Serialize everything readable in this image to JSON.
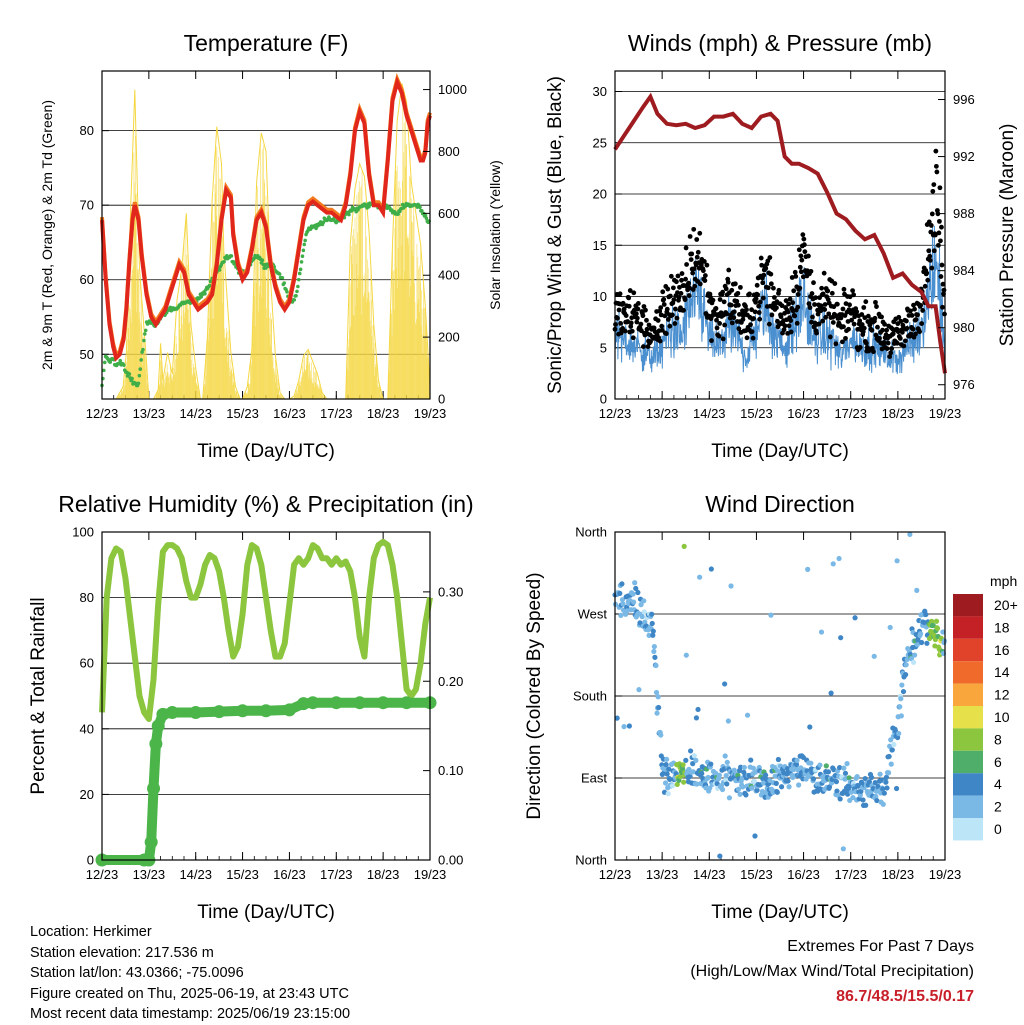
{
  "colors": {
    "t2m": "#e1261c",
    "t9m": "#f47a1f",
    "td": "#3fae49",
    "solar": "#f5d742",
    "wind": "#4a8fcf",
    "gust": "#000000",
    "pressure": "#9e1b20",
    "rh": "#8cc63f",
    "rain": "#4cb54a",
    "extremes": "#c8202a"
  },
  "chart_data": [
    {
      "type": "line",
      "title": "Temperature (F)",
      "xlabel": "Time (Day/UTC)",
      "ylabel": "2m & 9m T (Red, Orange) & 2m Td (Green)",
      "y2label": "Solar Insolation (Yellow)",
      "x_ticks": [
        "12/23",
        "13/23",
        "14/23",
        "15/23",
        "16/23",
        "17/23",
        "18/23",
        "19/23"
      ],
      "xlim": [
        0,
        7
      ],
      "ylim": [
        44,
        88
      ],
      "y_ticks": [
        50,
        60,
        70,
        80
      ],
      "y2lim": [
        0,
        1060
      ],
      "y2_ticks": [
        0,
        200,
        400,
        600,
        800,
        1000
      ],
      "grid": true,
      "series": [
        {
          "key": "t2m",
          "x": [
            0,
            0.08,
            0.16,
            0.24,
            0.3,
            0.38,
            0.46,
            0.52,
            0.58,
            0.65,
            0.7,
            0.78,
            0.85,
            0.95,
            1.05,
            1.15,
            1.25,
            1.35,
            1.45,
            1.55,
            1.65,
            1.75,
            1.85,
            1.95,
            2.05,
            2.15,
            2.25,
            2.35,
            2.45,
            2.55,
            2.65,
            2.75,
            2.8,
            2.9,
            3.0,
            3.1,
            3.2,
            3.3,
            3.4,
            3.5,
            3.6,
            3.7,
            3.8,
            3.9,
            4.0,
            4.1,
            4.2,
            4.3,
            4.4,
            4.5,
            4.6,
            4.7,
            4.8,
            4.9,
            5.0,
            5.1,
            5.2,
            5.3,
            5.4,
            5.5,
            5.6,
            5.7,
            5.8,
            5.9,
            6.0,
            6.1,
            6.2,
            6.3,
            6.4,
            6.5,
            6.6,
            6.7,
            6.8,
            6.85,
            6.9,
            6.95,
            7.0
          ],
          "y": [
            68,
            60,
            54,
            51,
            49.5,
            50,
            52,
            56,
            62,
            68,
            70,
            68,
            63,
            58,
            55,
            54,
            55,
            56,
            58,
            60,
            62,
            61,
            58,
            57,
            56,
            56.5,
            57,
            58,
            62,
            68,
            72,
            71,
            66,
            62,
            60,
            61,
            64,
            68,
            69,
            67,
            62,
            59,
            57,
            56,
            57,
            60,
            64,
            68,
            70,
            70.5,
            70,
            69.5,
            69,
            69,
            68.5,
            68,
            70,
            74,
            80,
            82.5,
            81,
            74,
            70,
            70,
            69,
            76,
            84,
            86.5,
            85,
            82,
            80,
            78,
            76,
            76,
            77,
            81,
            82
          ]
        },
        {
          "key": "td",
          "x": [
            0,
            0.08,
            0.16,
            0.24,
            0.3,
            0.4,
            0.5,
            0.6,
            0.7,
            0.78,
            0.85,
            0.95,
            1.05,
            1.15,
            1.25,
            1.35,
            1.45,
            1.55,
            1.65,
            1.75,
            1.85,
            1.95,
            2.05,
            2.15,
            2.25,
            2.35,
            2.45,
            2.55,
            2.65,
            2.75,
            2.85,
            2.95,
            3.05,
            3.15,
            3.25,
            3.35,
            3.45,
            3.55,
            3.65,
            3.75,
            3.85,
            3.95,
            4.05,
            4.15,
            4.25,
            4.35,
            4.45,
            4.55,
            4.65,
            4.75,
            4.85,
            4.95,
            5.05,
            5.15,
            5.25,
            5.35,
            5.45,
            5.55,
            5.65,
            5.75,
            5.85,
            5.95,
            6.05,
            6.15,
            6.25,
            6.35,
            6.45,
            6.55,
            6.65,
            6.75,
            6.85,
            6.95,
            7.0
          ],
          "y": [
            46,
            50,
            49,
            49.5,
            48.5,
            49,
            48,
            47,
            46,
            46,
            50,
            54,
            54.5,
            54,
            55,
            55.5,
            56,
            56,
            56.5,
            57,
            57,
            57,
            57.5,
            58,
            59,
            60,
            61,
            62,
            63,
            63,
            62,
            61,
            61,
            62,
            63,
            63,
            62,
            62,
            62,
            61,
            60,
            58,
            57,
            58,
            62,
            66,
            67,
            67,
            67.5,
            68,
            68,
            68,
            68,
            68.5,
            69,
            69.5,
            69.5,
            70,
            70,
            70,
            70,
            70,
            70,
            69.5,
            69,
            69,
            70,
            70,
            70,
            70,
            69,
            68,
            68
          ]
        },
        {
          "key": "solar",
          "type": "area",
          "x": [
            0,
            0.3,
            0.45,
            0.52,
            0.58,
            0.7,
            0.8,
            0.95,
            1.0,
            1.1,
            1.2,
            1.25,
            1.3,
            1.4,
            1.5,
            1.6,
            1.7,
            1.8,
            1.9,
            2.0,
            2.1,
            2.15,
            2.25,
            2.35,
            2.45,
            2.55,
            2.6,
            2.75,
            2.85,
            2.95,
            3.0,
            3.1,
            3.2,
            3.3,
            3.4,
            3.5,
            3.6,
            3.7,
            3.8,
            3.9,
            4.0,
            4.1,
            4.2,
            4.3,
            4.4,
            4.5,
            4.6,
            4.7,
            4.8,
            4.9,
            5.0,
            5.1,
            5.2,
            5.3,
            5.4,
            5.5,
            5.6,
            5.7,
            5.8,
            5.9,
            6.0,
            6.1,
            6.2,
            6.3,
            6.4,
            6.5,
            6.6,
            6.7,
            6.8,
            6.9,
            7.0
          ],
          "y": [
            0,
            0,
            40,
            150,
            480,
            1000,
            420,
            120,
            0,
            0,
            30,
            180,
            60,
            150,
            80,
            320,
            420,
            600,
            240,
            100,
            0,
            0,
            200,
            640,
            880,
            760,
            480,
            150,
            40,
            0,
            0,
            40,
            160,
            700,
            860,
            800,
            380,
            140,
            20,
            0,
            0,
            10,
            60,
            140,
            160,
            120,
            80,
            20,
            0,
            0,
            0,
            0,
            0,
            500,
            680,
            760,
            720,
            540,
            240,
            60,
            0,
            0,
            500,
            900,
            1020,
            960,
            700,
            600,
            500,
            300,
            40
          ]
        }
      ],
      "legend": "none"
    },
    {
      "type": "scatter",
      "title": "Winds (mph) & Pressure (mb)",
      "xlabel": "Time (Day/UTC)",
      "ylabel": "Sonic/Prop Wind & Gust (Blue, Black)",
      "y2label": "Station Pressure (Maroon)",
      "x_ticks": [
        "12/23",
        "13/23",
        "14/23",
        "15/23",
        "16/23",
        "17/23",
        "18/23",
        "19/23"
      ],
      "xlim": [
        0,
        7
      ],
      "ylim": [
        0,
        32
      ],
      "y_ticks": [
        0,
        5,
        10,
        15,
        20,
        25,
        30
      ],
      "y2lim": [
        975,
        998
      ],
      "y2_ticks": [
        976,
        980,
        984,
        988,
        992,
        996
      ],
      "grid": true,
      "pressure": {
        "x": [
          0,
          0.2,
          0.4,
          0.6,
          0.75,
          0.9,
          1.1,
          1.3,
          1.5,
          1.7,
          1.9,
          2.1,
          2.3,
          2.5,
          2.7,
          2.9,
          3.1,
          3.3,
          3.45,
          3.6,
          3.75,
          3.9,
          4.1,
          4.3,
          4.5,
          4.7,
          4.9,
          5.1,
          5.3,
          5.5,
          5.7,
          5.9,
          6.1,
          6.3,
          6.5,
          6.65,
          6.8,
          6.9,
          7.0
        ],
        "y": [
          992.5,
          993.5,
          994.5,
          995.5,
          996.2,
          995,
          994.3,
          994.2,
          994.3,
          994,
          994.2,
          994.8,
          994.8,
          995,
          994.3,
          994,
          994.8,
          995,
          994.5,
          992,
          991.5,
          991.5,
          991.2,
          990.8,
          989.5,
          988,
          987.6,
          986.8,
          986.2,
          986.5,
          985.2,
          983.5,
          983.8,
          983,
          982.5,
          981.5,
          981.5,
          979,
          976.8
        ]
      },
      "wind_profile": {
        "x": [
          0,
          0.5,
          0.8,
          1.0,
          1.2,
          1.4,
          1.6,
          1.8,
          2.0,
          2.2,
          2.4,
          2.6,
          2.8,
          3.0,
          3.2,
          3.4,
          3.6,
          3.8,
          4.0,
          4.2,
          4.4,
          4.6,
          4.8,
          5.0,
          5.2,
          5.4,
          5.6,
          5.8,
          6.0,
          6.2,
          6.4,
          6.6,
          6.8,
          6.9,
          7.0
        ],
        "y": [
          6,
          5,
          4,
          5,
          7,
          6,
          9,
          10,
          6,
          5,
          7,
          6,
          4,
          7,
          9,
          6,
          5,
          7,
          10,
          6,
          6,
          6,
          4,
          6,
          5,
          5,
          5,
          4,
          4,
          5,
          6,
          9,
          14,
          10,
          5
        ]
      },
      "gust_profile": {
        "x": [
          0,
          0.5,
          0.8,
          1.0,
          1.2,
          1.4,
          1.6,
          1.8,
          2.0,
          2.2,
          2.4,
          2.6,
          2.8,
          3.0,
          3.2,
          3.4,
          3.6,
          3.8,
          4.0,
          4.2,
          4.4,
          4.6,
          4.8,
          5.0,
          5.2,
          5.4,
          5.6,
          5.8,
          6.0,
          6.2,
          6.4,
          6.6,
          6.8,
          6.9,
          7.0
        ],
        "y": [
          8,
          8,
          6,
          8,
          10,
          9,
          13,
          14,
          9,
          8,
          10,
          9,
          7,
          10,
          12,
          9,
          8,
          10,
          14,
          9,
          9,
          9,
          7,
          9,
          7,
          7,
          7,
          6,
          6,
          7,
          8,
          12,
          19,
          16,
          7
        ]
      },
      "legend": "none"
    },
    {
      "type": "line",
      "title": "Relative Humidity (%) & Precipitation (in)",
      "xlabel": "Time (Day/UTC)",
      "ylabel": "Percent & Total Rainfall",
      "x_ticks": [
        "12/23",
        "13/23",
        "14/23",
        "15/23",
        "16/23",
        "17/23",
        "18/23",
        "19/23"
      ],
      "xlim": [
        0,
        7
      ],
      "ylim": [
        0,
        100
      ],
      "y_ticks": [
        0,
        20,
        40,
        60,
        80,
        100
      ],
      "y2lim": [
        0,
        0.367
      ],
      "y2_ticks": [
        "0.00",
        "0.10",
        "0.20",
        "0.30"
      ],
      "grid": true,
      "series": [
        {
          "key": "rh",
          "x": [
            0,
            0.1,
            0.2,
            0.3,
            0.4,
            0.5,
            0.6,
            0.7,
            0.8,
            0.9,
            1.0,
            1.1,
            1.2,
            1.3,
            1.4,
            1.5,
            1.6,
            1.7,
            1.8,
            1.9,
            2.0,
            2.1,
            2.2,
            2.3,
            2.4,
            2.5,
            2.6,
            2.7,
            2.8,
            2.9,
            3.0,
            3.1,
            3.2,
            3.3,
            3.4,
            3.5,
            3.6,
            3.7,
            3.8,
            3.9,
            4.0,
            4.1,
            4.2,
            4.3,
            4.4,
            4.5,
            4.6,
            4.7,
            4.8,
            4.9,
            5.0,
            5.1,
            5.2,
            5.3,
            5.4,
            5.5,
            5.6,
            5.7,
            5.8,
            5.9,
            6.0,
            6.1,
            6.2,
            6.3,
            6.4,
            6.5,
            6.6,
            6.7,
            6.8,
            6.9,
            7.0
          ],
          "y": [
            45,
            80,
            92,
            95,
            94,
            86,
            74,
            62,
            50,
            45,
            43,
            55,
            78,
            94,
            96,
            96,
            95,
            92,
            85,
            80,
            80,
            84,
            90,
            93,
            92,
            88,
            80,
            70,
            62,
            65,
            75,
            90,
            96,
            95,
            90,
            80,
            70,
            62,
            62,
            66,
            78,
            90,
            92,
            90,
            92,
            96,
            95,
            92,
            92,
            90,
            92,
            90,
            91,
            88,
            80,
            68,
            62,
            80,
            92,
            96,
            97,
            96,
            90,
            80,
            66,
            52,
            50,
            52,
            60,
            72,
            80
          ]
        },
        {
          "key": "rain",
          "x": [
            0,
            0.9,
            1.0,
            1.05,
            1.1,
            1.15,
            1.2,
            1.3,
            1.5,
            2.0,
            2.5,
            3.0,
            3.5,
            4.0,
            4.3,
            4.5,
            5.0,
            5.5,
            6.0,
            6.5,
            7.0
          ],
          "y": [
            0,
            0,
            0,
            0.02,
            0.08,
            0.13,
            0.15,
            0.163,
            0.165,
            0.165,
            0.166,
            0.167,
            0.167,
            0.168,
            0.175,
            0.176,
            0.176,
            0.176,
            0.176,
            0.176,
            0.176
          ]
        }
      ],
      "legend": "none"
    },
    {
      "type": "scatter",
      "title": "Wind Direction",
      "xlabel": "Time (Day/UTC)",
      "ylabel": "Direction (Colored By Speed)",
      "x_ticks": [
        "12/23",
        "13/23",
        "14/23",
        "15/23",
        "16/23",
        "17/23",
        "18/23",
        "19/23"
      ],
      "xlim": [
        0,
        7
      ],
      "ylim": [
        0,
        360
      ],
      "y_ticks": [
        "North",
        "East",
        "South",
        "West",
        "North"
      ],
      "grid": true,
      "direction_profile": {
        "x": [
          0,
          0.3,
          0.6,
          0.8,
          1.0,
          1.2,
          1.5,
          1.8,
          2.1,
          2.4,
          2.7,
          3.0,
          3.3,
          3.6,
          3.9,
          4.2,
          4.5,
          4.8,
          5.1,
          5.4,
          5.7,
          6.0,
          6.2,
          6.4,
          6.6,
          6.8,
          7.0
        ],
        "y": [
          290,
          285,
          270,
          255,
          100,
          90,
          95,
          90,
          88,
          92,
          85,
          90,
          85,
          95,
          100,
          90,
          88,
          86,
          80,
          75,
          80,
          150,
          220,
          240,
          260,
          250,
          230
        ]
      },
      "colorbar": {
        "title": "mph",
        "labels": [
          "20+",
          "18",
          "16",
          "14",
          "12",
          "10",
          "8",
          "6",
          "4",
          "2",
          "0"
        ],
        "colors": [
          "#9e1b20",
          "#c42126",
          "#e0432a",
          "#ef6a2b",
          "#f9a63c",
          "#e6e04a",
          "#8cc63f",
          "#4fae6a",
          "#3e86c6",
          "#7ab8e6",
          "#bde5f8"
        ]
      },
      "legend": "colorbar-right"
    }
  ],
  "info": {
    "location": "Location: Herkimer",
    "elevation": "Station elevation: 217.536 m",
    "latlon": "Station lat/lon: 43.0366; -75.0096",
    "created": "Figure created on Thu, 2025-06-19, at 23:43 UTC",
    "recent": "Most recent data timestamp: 2025/06/19 23:15:00"
  },
  "extremes": {
    "title": "Extremes For Past 7 Days",
    "subtitle": "(High/Low/Max Wind/Total Precipitation)",
    "values": "86.7/48.5/15.5/0.17"
  }
}
